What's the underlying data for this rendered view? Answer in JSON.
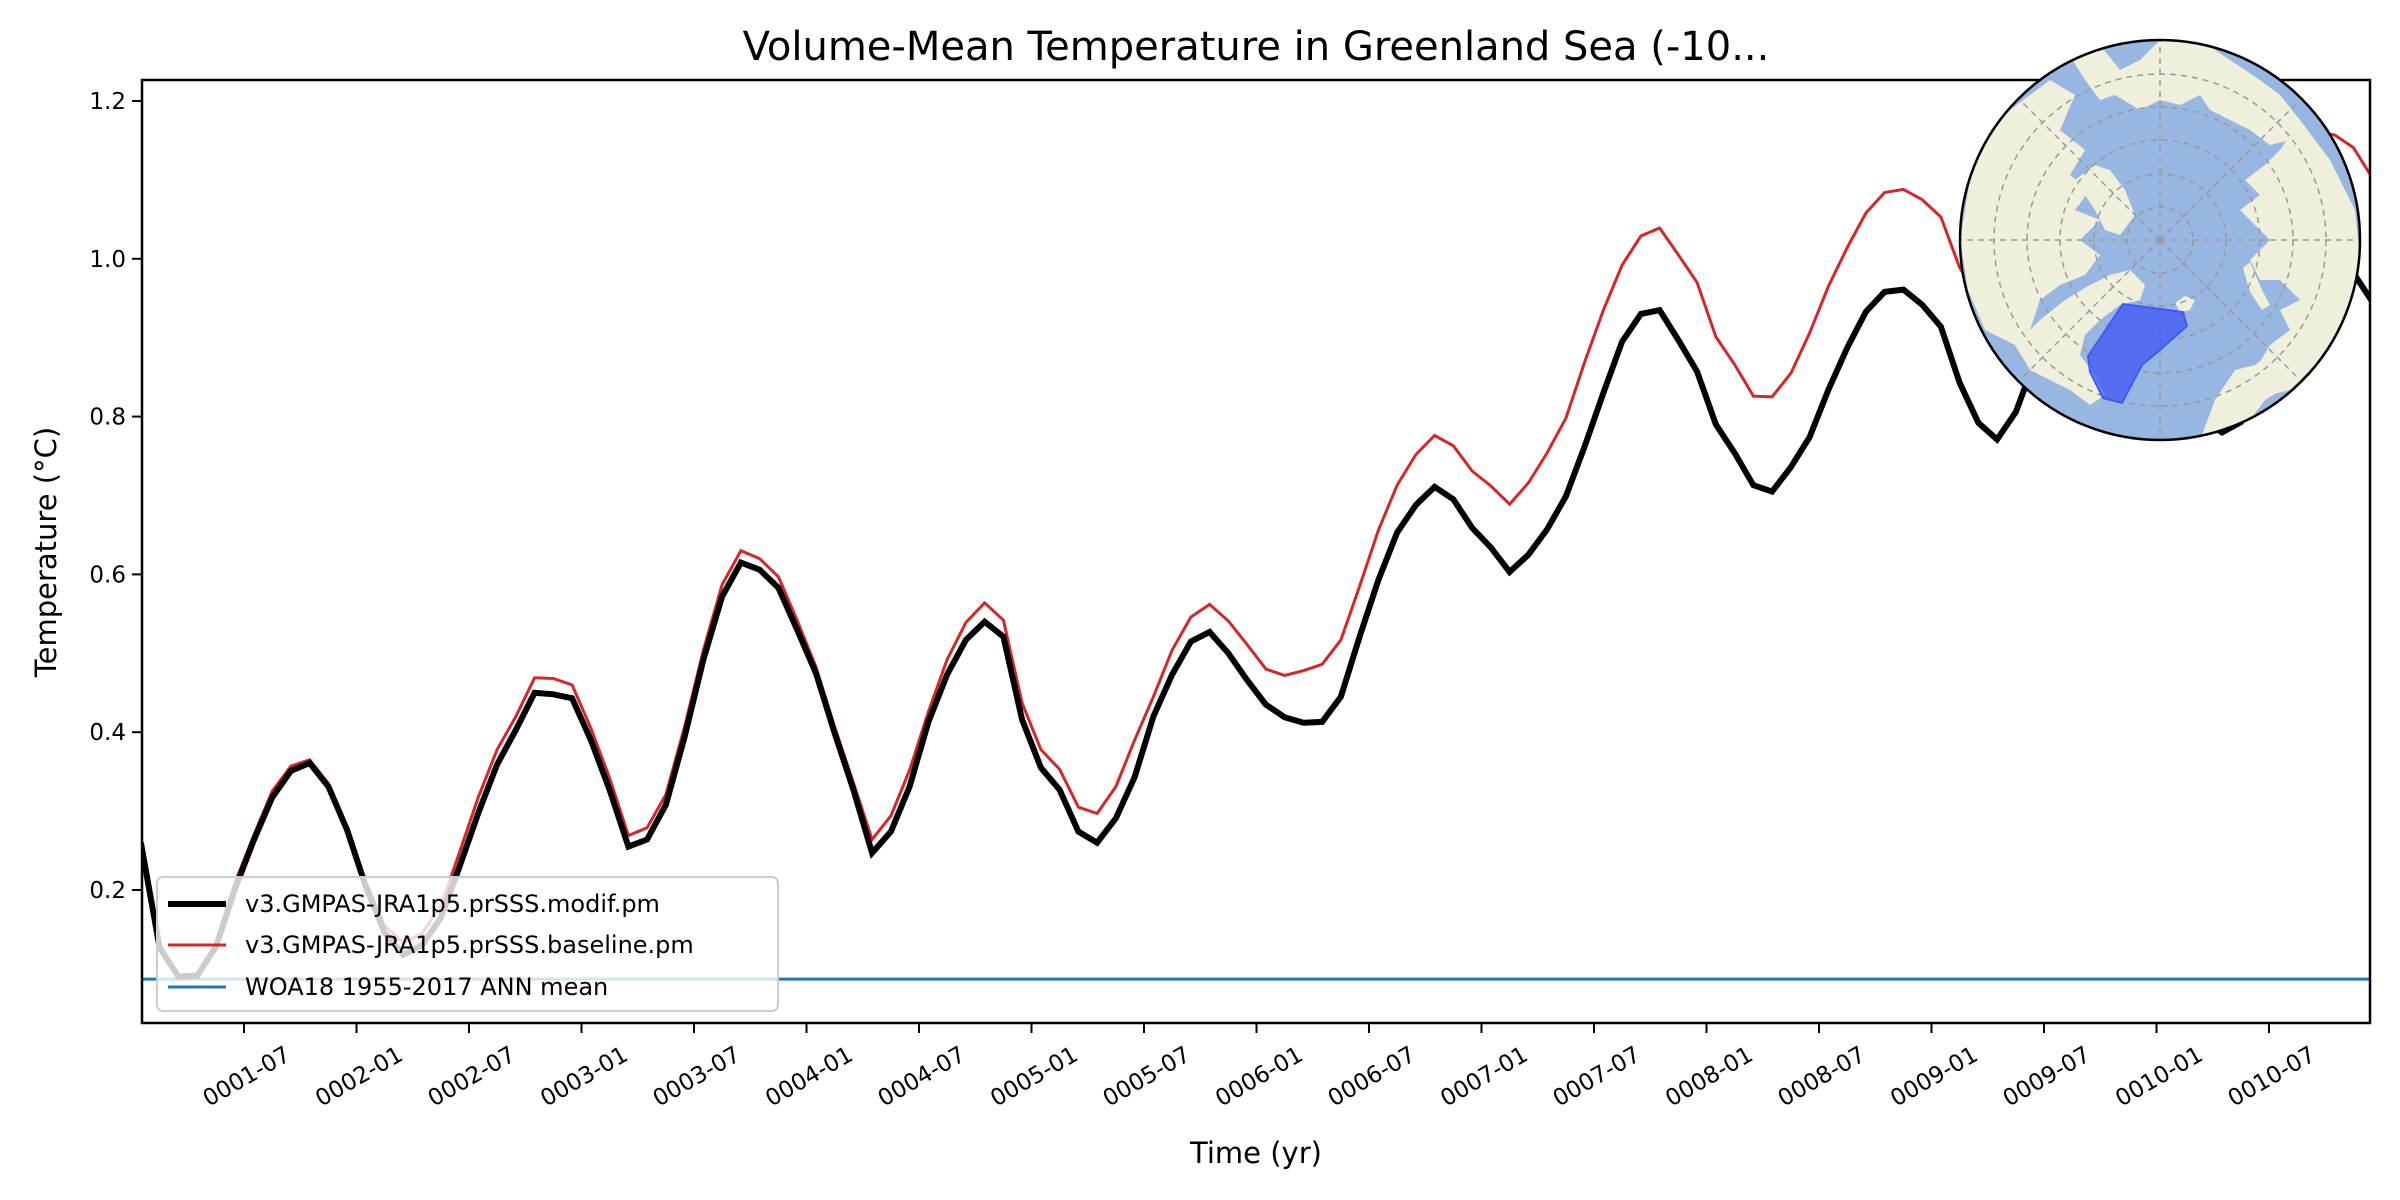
{
  "chart_data": {
    "type": "line",
    "title": "Volume-Mean Temperature in Greenland Sea (-10...",
    "xlabel": "Time (yr)",
    "ylabel": "Temperature ($^\\circ$C)",
    "ylabel_display": "Temperature (°C)",
    "ylim": [
      0.04,
      1.225
    ],
    "yticks": [
      0.2,
      0.4,
      0.6,
      0.8,
      1.0,
      1.2
    ],
    "ytick_labels": [
      "0.2",
      "0.4",
      "0.6",
      "0.8",
      "1.0",
      "1.2"
    ],
    "xlim_months": [
      0.05,
      119.95
    ],
    "xticks_months": [
      6,
      12,
      18,
      24,
      30,
      36,
      42,
      48,
      54,
      60,
      66,
      72,
      78,
      84,
      90,
      96,
      102,
      108,
      114
    ],
    "xtick_labels": [
      "0001-07",
      "0002-01",
      "0002-07",
      "0003-01",
      "0003-07",
      "0004-01",
      "0004-07",
      "0005-01",
      "0005-07",
      "0006-01",
      "0006-07",
      "0007-01",
      "0007-07",
      "0008-01",
      "0008-07",
      "0009-01",
      "0009-07",
      "0010-01",
      "0010-07"
    ],
    "x_description": "monthly means, 0001-01 through 0010-12 (120 months)",
    "grid": false,
    "legend_position": "lower-left",
    "series": [
      {
        "name": "v3.GMPAS-JRA1p5.prSSS.modif.pm",
        "color": "#000000",
        "style": "thick",
        "values": [
          0.26,
          0.127,
          0.09,
          0.091,
          0.128,
          0.2,
          0.262,
          0.317,
          0.351,
          0.361,
          0.331,
          0.276,
          0.204,
          0.146,
          0.118,
          0.13,
          0.165,
          0.23,
          0.298,
          0.359,
          0.403,
          0.45,
          0.448,
          0.443,
          0.39,
          0.327,
          0.255,
          0.264,
          0.308,
          0.394,
          0.492,
          0.572,
          0.615,
          0.606,
          0.583,
          0.53,
          0.475,
          0.399,
          0.327,
          0.247,
          0.274,
          0.331,
          0.413,
          0.473,
          0.517,
          0.54,
          0.521,
          0.416,
          0.355,
          0.327,
          0.274,
          0.26,
          0.291,
          0.343,
          0.42,
          0.473,
          0.515,
          0.527,
          0.5,
          0.466,
          0.435,
          0.419,
          0.412,
          0.413,
          0.445,
          0.521,
          0.593,
          0.653,
          0.688,
          0.711,
          0.695,
          0.659,
          0.634,
          0.603,
          0.625,
          0.657,
          0.699,
          0.762,
          0.83,
          0.895,
          0.93,
          0.935,
          0.897,
          0.857,
          0.79,
          0.754,
          0.713,
          0.705,
          0.736,
          0.774,
          0.834,
          0.887,
          0.933,
          0.958,
          0.961,
          0.942,
          0.914,
          0.843,
          0.792,
          0.771,
          0.806,
          0.87,
          0.93,
          0.985,
          1.01,
          1.015,
          0.99,
          0.94,
          0.88,
          0.83,
          0.795,
          0.78,
          0.793,
          0.83,
          0.88,
          0.93,
          0.975,
          1.0,
          0.982,
          0.946
        ]
      },
      {
        "name": "v3.GMPAS-JRA1p5.prSSS.baseline.pm",
        "color": "#d62728",
        "style": "thin",
        "values": [
          0.255,
          0.13,
          0.092,
          0.094,
          0.132,
          0.208,
          0.268,
          0.325,
          0.357,
          0.365,
          0.335,
          0.28,
          0.21,
          0.155,
          0.133,
          0.145,
          0.18,
          0.248,
          0.318,
          0.378,
          0.42,
          0.469,
          0.468,
          0.46,
          0.405,
          0.342,
          0.269,
          0.279,
          0.321,
          0.407,
          0.504,
          0.587,
          0.63,
          0.62,
          0.597,
          0.542,
          0.483,
          0.407,
          0.336,
          0.264,
          0.294,
          0.352,
          0.426,
          0.492,
          0.539,
          0.564,
          0.542,
          0.437,
          0.378,
          0.353,
          0.305,
          0.297,
          0.331,
          0.39,
          0.445,
          0.504,
          0.546,
          0.562,
          0.541,
          0.511,
          0.48,
          0.472,
          0.478,
          0.486,
          0.517,
          0.585,
          0.656,
          0.713,
          0.752,
          0.776,
          0.763,
          0.731,
          0.712,
          0.689,
          0.716,
          0.754,
          0.798,
          0.869,
          0.935,
          0.992,
          1.029,
          1.039,
          1.005,
          0.97,
          0.901,
          0.866,
          0.826,
          0.825,
          0.855,
          0.906,
          0.965,
          1.014,
          1.058,
          1.084,
          1.088,
          1.075,
          1.053,
          0.989,
          0.95,
          0.935,
          0.96,
          1.02,
          1.08,
          1.13,
          1.16,
          1.17,
          1.15,
          1.1,
          1.05,
          1.01,
          0.985,
          0.975,
          0.99,
          1.03,
          1.08,
          1.13,
          1.16,
          1.157,
          1.141,
          1.103
        ]
      },
      {
        "name": "WOA18 1955-2017 ANN mean",
        "color": "#1f77b4",
        "style": "horizontal",
        "value": 0.087
      }
    ],
    "inset": {
      "type": "north-polar-stereographic-map",
      "ocean_color": "#97b6e1",
      "land_color": "#efefdb",
      "region_color": "#3c55f5",
      "region_label": "Greenland Sea"
    }
  }
}
